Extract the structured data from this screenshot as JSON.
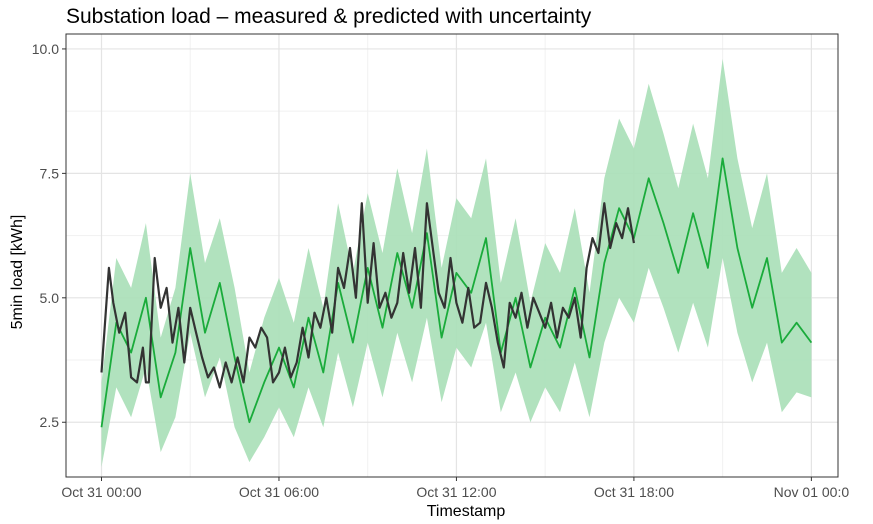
{
  "chart_data": {
    "type": "line",
    "title": "Substation load – measured & predicted with uncertainty",
    "xlabel": "Timestamp",
    "ylabel": "5min load [kWh]",
    "x_ticks": [
      "Oct 31 00:00",
      "Oct 31 06:00",
      "Oct 31 12:00",
      "Oct 31 18:00",
      "Nov 01 00:0"
    ],
    "y_ticks": [
      "2.5",
      "5.0",
      "7.5",
      "10.0"
    ],
    "xlim_hours": [
      -1.2,
      24.9
    ],
    "ylim": [
      1.4,
      10.3
    ],
    "grid": true,
    "colors": {
      "measured": "#333333",
      "predicted": "#1aab3b",
      "band": "#a9dfb7"
    },
    "series": [
      {
        "role": "predicted",
        "hours": [
          0.0,
          0.5,
          1.0,
          1.5,
          2.0,
          2.5,
          3.0,
          3.5,
          4.0,
          4.5,
          5.0,
          5.5,
          6.0,
          6.5,
          7.0,
          7.5,
          8.0,
          8.5,
          9.0,
          9.5,
          10.0,
          10.5,
          11.0,
          11.5,
          12.0,
          12.5,
          13.0,
          13.5,
          14.0,
          14.5,
          15.0,
          15.5,
          16.0,
          16.5,
          17.0,
          17.5,
          18.0,
          18.5,
          19.0,
          19.5,
          20.0,
          20.5,
          21.0,
          21.5,
          22.0,
          22.5,
          23.0,
          23.5,
          24.0
        ],
        "values": [
          2.4,
          4.5,
          3.9,
          5.0,
          3.0,
          3.9,
          6.0,
          4.3,
          5.3,
          3.8,
          2.5,
          3.3,
          4.0,
          3.2,
          4.6,
          3.5,
          5.3,
          4.1,
          5.6,
          4.4,
          5.9,
          4.8,
          6.3,
          4.2,
          5.5,
          5.1,
          6.2,
          3.9,
          5.0,
          3.6,
          4.6,
          4.0,
          5.2,
          3.8,
          5.7,
          6.8,
          6.2,
          7.4,
          6.5,
          5.5,
          6.7,
          5.6,
          7.8,
          6.0,
          4.8,
          5.8,
          4.1,
          4.5,
          4.1
        ],
        "lower": [
          1.6,
          3.2,
          2.6,
          3.6,
          1.9,
          2.6,
          4.3,
          3.0,
          3.8,
          2.4,
          1.7,
          2.2,
          2.8,
          2.2,
          3.2,
          2.4,
          3.9,
          2.8,
          4.1,
          3.0,
          4.3,
          3.3,
          4.6,
          2.9,
          4.0,
          3.6,
          4.5,
          2.7,
          3.5,
          2.5,
          3.2,
          2.7,
          3.7,
          2.6,
          4.1,
          5.0,
          4.5,
          5.6,
          4.8,
          3.9,
          4.9,
          4.0,
          5.8,
          4.3,
          3.3,
          4.1,
          2.7,
          3.1,
          3.0
        ],
        "upper": [
          3.3,
          5.8,
          5.2,
          6.5,
          4.2,
          5.2,
          7.5,
          5.7,
          6.6,
          5.2,
          3.5,
          4.6,
          5.4,
          4.5,
          6.0,
          4.8,
          6.9,
          5.5,
          7.1,
          5.9,
          7.6,
          6.3,
          8.0,
          5.6,
          7.0,
          6.6,
          7.8,
          5.3,
          6.6,
          4.9,
          6.1,
          5.5,
          6.8,
          5.1,
          7.4,
          8.6,
          8.0,
          9.3,
          8.3,
          7.2,
          8.5,
          7.4,
          9.8,
          7.8,
          6.4,
          7.5,
          5.5,
          6.0,
          5.5
        ]
      },
      {
        "role": "measured",
        "hours": [
          0.0,
          0.25,
          0.4,
          0.6,
          0.8,
          1.0,
          1.2,
          1.4,
          1.5,
          1.6,
          1.8,
          2.0,
          2.2,
          2.4,
          2.6,
          2.8,
          3.0,
          3.2,
          3.4,
          3.6,
          3.8,
          4.0,
          4.2,
          4.4,
          4.6,
          4.8,
          5.0,
          5.2,
          5.4,
          5.6,
          5.8,
          6.0,
          6.2,
          6.4,
          6.6,
          6.8,
          7.0,
          7.2,
          7.4,
          7.6,
          7.8,
          8.0,
          8.2,
          8.4,
          8.6,
          8.8,
          9.0,
          9.2,
          9.4,
          9.6,
          9.8,
          10.0,
          10.2,
          10.4,
          10.6,
          10.8,
          11.0,
          11.2,
          11.4,
          11.6,
          11.8,
          12.0,
          12.2,
          12.4,
          12.6,
          12.8,
          13.0,
          13.2,
          13.4,
          13.6,
          13.8,
          14.0,
          14.2,
          14.4,
          14.6,
          14.8,
          15.0,
          15.2,
          15.4,
          15.6,
          15.8,
          16.0,
          16.2,
          16.4,
          16.6,
          16.8,
          17.0,
          17.2,
          17.4,
          17.6,
          17.8,
          18.0
        ],
        "values": [
          3.5,
          5.6,
          4.9,
          4.3,
          4.7,
          3.4,
          3.3,
          4.0,
          3.3,
          3.3,
          5.8,
          4.8,
          5.2,
          4.1,
          4.8,
          3.7,
          4.8,
          4.3,
          3.8,
          3.4,
          3.6,
          3.2,
          3.7,
          3.3,
          3.8,
          3.3,
          4.2,
          4.0,
          4.4,
          4.2,
          3.3,
          3.5,
          4.0,
          3.4,
          3.7,
          4.4,
          3.8,
          4.7,
          4.4,
          5.0,
          4.3,
          5.6,
          5.2,
          6.0,
          5.0,
          6.9,
          4.9,
          6.1,
          4.8,
          5.1,
          4.6,
          4.9,
          5.9,
          5.1,
          6.0,
          4.8,
          6.9,
          6.0,
          5.1,
          4.8,
          5.8,
          4.9,
          4.5,
          5.2,
          4.4,
          4.5,
          5.3,
          4.8,
          4.1,
          3.6,
          4.9,
          4.6,
          5.1,
          4.4,
          5.0,
          4.7,
          4.4,
          4.9,
          4.2,
          4.8,
          4.6,
          5.0,
          4.2,
          5.6,
          6.2,
          5.9,
          6.9,
          6.0,
          6.5,
          6.2,
          6.8,
          6.1
        ]
      }
    ]
  }
}
